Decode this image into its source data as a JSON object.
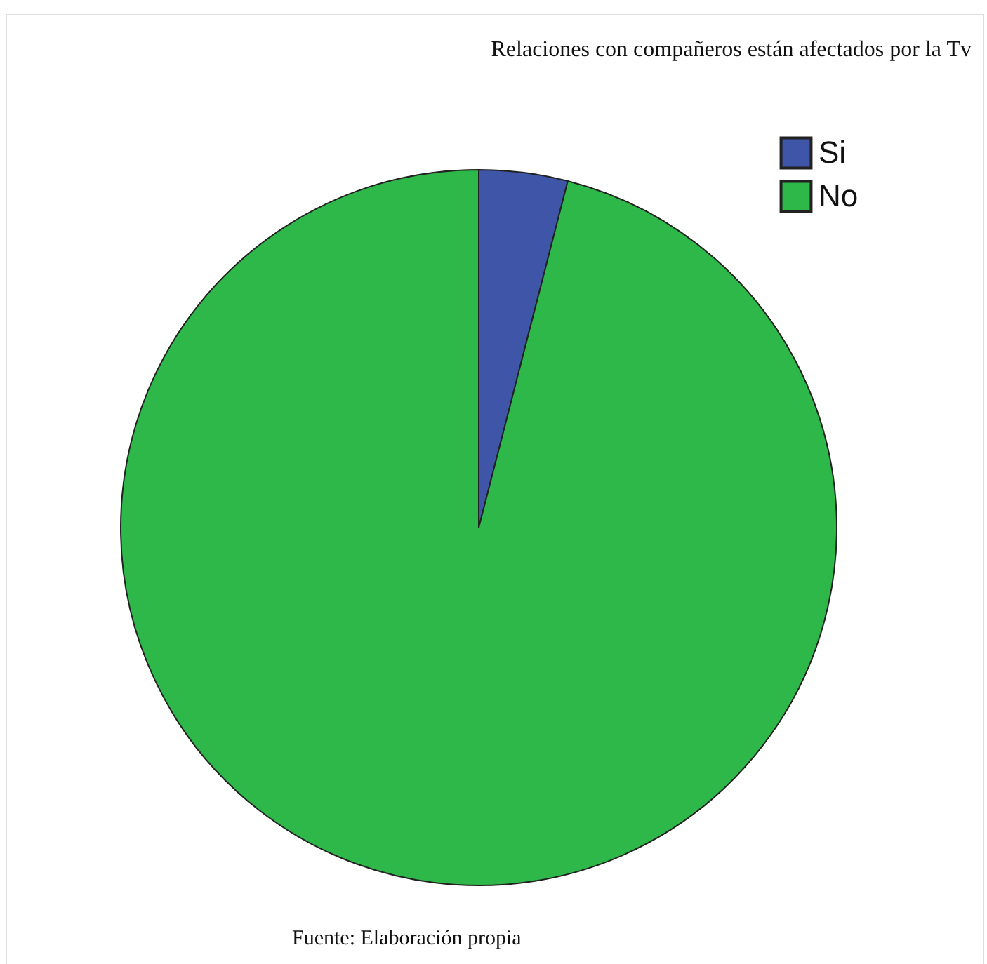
{
  "chart_data": {
    "type": "pie",
    "title": "Relaciones con compañeros están afectados por la Tv",
    "categories": [
      "Si",
      "No"
    ],
    "values": [
      4,
      96
    ],
    "colors": [
      "#3f55a8",
      "#2eb84a"
    ],
    "legend": "top right",
    "annotations": [
      "Fuente: Elaboración propia"
    ]
  }
}
